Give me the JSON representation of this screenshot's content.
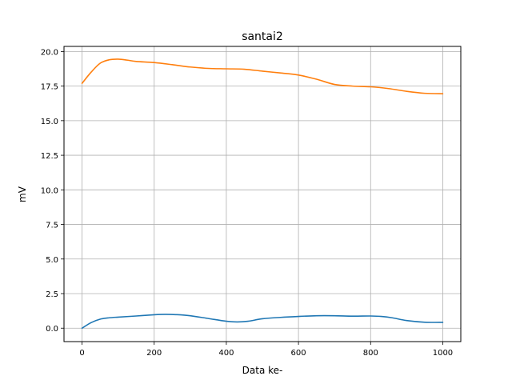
{
  "chart_data": {
    "type": "line",
    "title": "santai2",
    "xlabel": "Data ke-",
    "ylabel": "mV",
    "xlim": [
      -50,
      1050
    ],
    "ylim": [
      -0.97,
      20.37
    ],
    "xticks": [
      0,
      200,
      400,
      600,
      800,
      1000
    ],
    "xtick_labels": [
      "0",
      "200",
      "400",
      "600",
      "800",
      "1000"
    ],
    "yticks": [
      0,
      2.5,
      5,
      7.5,
      10,
      12.5,
      15,
      17.5,
      20
    ],
    "ytick_labels": [
      "0.0",
      "2.5",
      "5.0",
      "7.5",
      "10.0",
      "12.5",
      "15.0",
      "17.5",
      "20.0"
    ],
    "grid": true,
    "series": [
      {
        "color": "#1f77b4",
        "x": [
          0,
          25,
          50,
          75,
          100,
          150,
          200,
          230,
          260,
          300,
          350,
          400,
          430,
          460,
          500,
          550,
          600,
          650,
          700,
          750,
          800,
          830,
          860,
          900,
          950,
          1000
        ],
        "y": [
          0.0,
          0.4,
          0.65,
          0.75,
          0.8,
          0.88,
          0.97,
          1.0,
          0.98,
          0.9,
          0.7,
          0.5,
          0.45,
          0.5,
          0.68,
          0.78,
          0.85,
          0.9,
          0.9,
          0.87,
          0.88,
          0.85,
          0.75,
          0.55,
          0.43,
          0.42
        ]
      },
      {
        "color": "#ff7f0e",
        "x": [
          0,
          25,
          50,
          75,
          100,
          125,
          150,
          200,
          250,
          300,
          350,
          400,
          450,
          500,
          550,
          600,
          650,
          700,
          750,
          800,
          850,
          900,
          950,
          1000
        ],
        "y": [
          17.7,
          18.5,
          19.15,
          19.4,
          19.45,
          19.38,
          19.28,
          19.2,
          19.05,
          18.88,
          18.78,
          18.75,
          18.72,
          18.58,
          18.45,
          18.3,
          18.0,
          17.62,
          17.5,
          17.45,
          17.32,
          17.12,
          16.98,
          16.95
        ]
      }
    ]
  }
}
